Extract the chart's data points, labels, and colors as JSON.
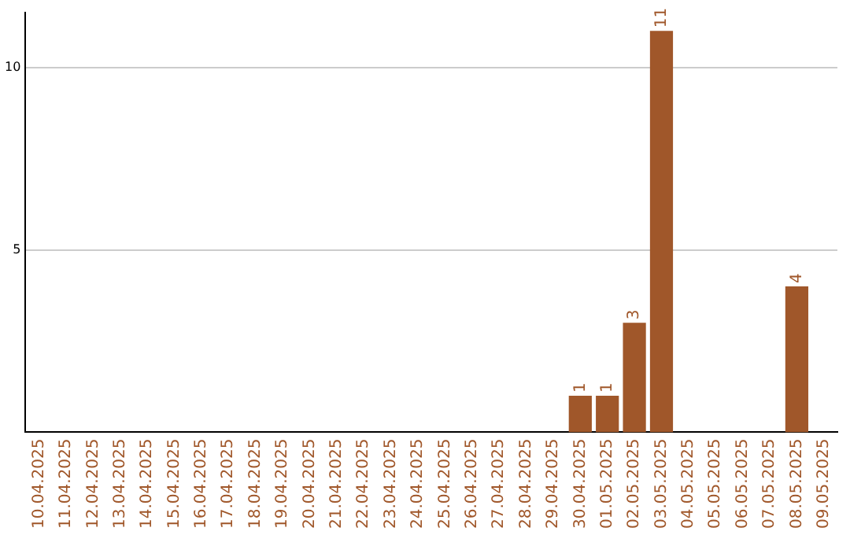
{
  "chart_data": {
    "type": "bar",
    "categories": [
      "10.04.2025",
      "11.04.2025",
      "12.04.2025",
      "13.04.2025",
      "14.04.2025",
      "15.04.2025",
      "16.04.2025",
      "17.04.2025",
      "18.04.2025",
      "19.04.2025",
      "20.04.2025",
      "21.04.2025",
      "22.04.2025",
      "23.04.2025",
      "24.04.2025",
      "25.04.2025",
      "26.04.2025",
      "27.04.2025",
      "28.04.2025",
      "29.04.2025",
      "30.04.2025",
      "01.05.2025",
      "02.05.2025",
      "03.05.2025",
      "04.05.2025",
      "05.05.2025",
      "06.05.2025",
      "07.05.2025",
      "08.05.2025",
      "09.05.2025"
    ],
    "values": [
      0,
      0,
      0,
      0,
      0,
      0,
      0,
      0,
      0,
      0,
      0,
      0,
      0,
      0,
      0,
      0,
      0,
      0,
      0,
      0,
      1,
      1,
      3,
      11,
      0,
      0,
      0,
      0,
      4,
      0
    ],
    "value_labels": [
      null,
      null,
      null,
      null,
      null,
      null,
      null,
      null,
      null,
      null,
      null,
      null,
      null,
      null,
      null,
      null,
      null,
      null,
      null,
      null,
      "1",
      "1",
      "3",
      "11",
      null,
      null,
      null,
      null,
      "4",
      null
    ],
    "color": "#a0572a",
    "ylim": [
      0,
      11.5
    ],
    "yticks": [
      5,
      10
    ],
    "grid": "y"
  }
}
